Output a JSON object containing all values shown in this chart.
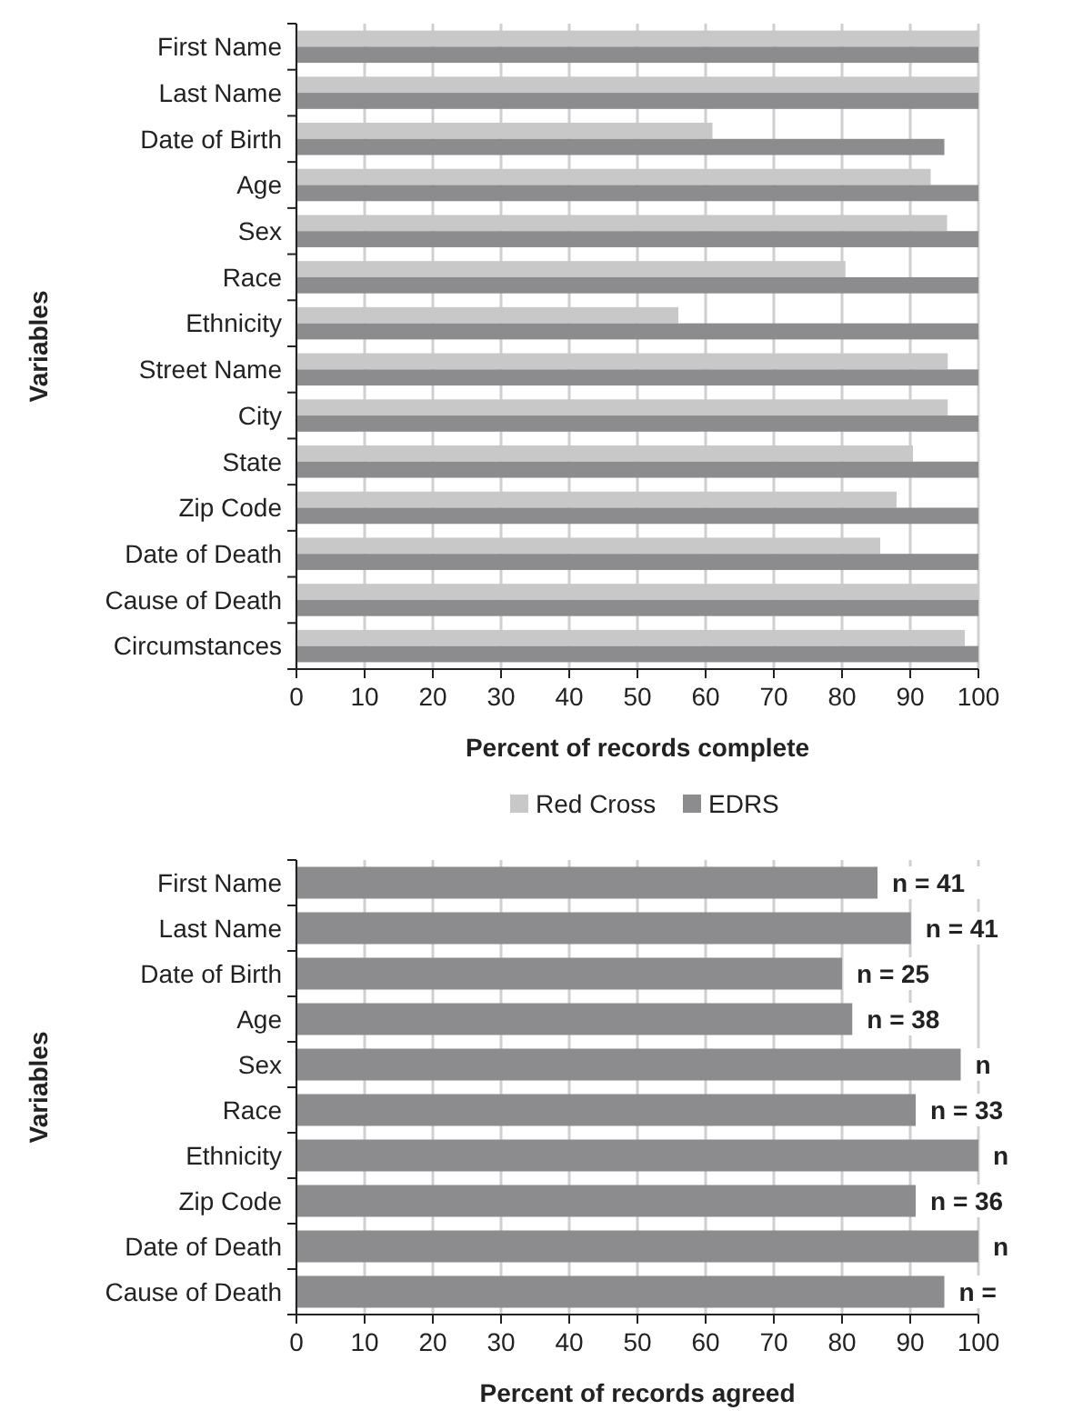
{
  "chart_data": [
    {
      "type": "bar",
      "orientation": "horizontal",
      "ylabel": "Variables",
      "xlabel": "Percent of records complete",
      "categories": [
        "First Name",
        "Last Name",
        "Date of Birth",
        "Age",
        "Sex",
        "Race",
        "Ethnicity",
        "Street Name",
        "City",
        "State",
        "Zip Code",
        "Date of Death",
        "Cause of Death",
        "Circumstances"
      ],
      "series": [
        {
          "name": "Red Cross",
          "color": "#c8c8c8",
          "values": [
            100,
            100,
            61,
            93,
            95.4,
            80.5,
            56,
            95.5,
            95.5,
            90.4,
            88,
            85.6,
            100,
            98
          ]
        },
        {
          "name": "EDRS",
          "color": "#8c8c8e",
          "values": [
            100,
            100,
            95,
            100,
            100,
            100,
            100,
            100,
            100,
            100,
            100,
            100,
            100,
            100
          ]
        }
      ],
      "xlim": [
        0,
        100
      ],
      "xticks": [
        0,
        10,
        20,
        30,
        40,
        50,
        60,
        70,
        80,
        90,
        100
      ],
      "grid": "x",
      "legend": "bottom"
    },
    {
      "type": "bar",
      "orientation": "horizontal",
      "ylabel": "Variables",
      "xlabel": "Percent of records agreed",
      "categories": [
        "First Name",
        "Last Name",
        "Date of Birth",
        "Age",
        "Sex",
        "Race",
        "Ethnicity",
        "Zip Code",
        "Date of Death",
        "Cause of Death"
      ],
      "series": [
        {
          "color": "#8c8c8e",
          "values": [
            85.2,
            90.1,
            80,
            81.5,
            97.4,
            90.8,
            100,
            90.8,
            100,
            95
          ]
        }
      ],
      "annotations": [
        {
          "text": "n = 41",
          "x": 85.2,
          "y": "First Name"
        },
        {
          "text": "n = 41",
          "x": 90.1,
          "y": "Last Name"
        },
        {
          "text": "n = 25",
          "x": 80,
          "y": "Date of Birth"
        },
        {
          "text": "n = 38",
          "x": 81.5,
          "y": "Age"
        },
        {
          "text": "n",
          "x": 97.4,
          "y": "Sex"
        },
        {
          "text": "n = 33",
          "x": 90.8,
          "y": "Race"
        },
        {
          "text": "n",
          "x": 100,
          "y": "Ethnicity"
        },
        {
          "text": "n = 36",
          "x": 90.8,
          "y": "Zip Code"
        },
        {
          "text": "n",
          "x": 100,
          "y": "Date of Death"
        },
        {
          "text": "n =",
          "x": 95,
          "y": "Cause of Death"
        }
      ],
      "xlim": [
        0,
        100
      ],
      "xticks": [
        0,
        10,
        20,
        30,
        40,
        50,
        60,
        70,
        80,
        90,
        100
      ],
      "grid": "x",
      "legend": false
    }
  ]
}
